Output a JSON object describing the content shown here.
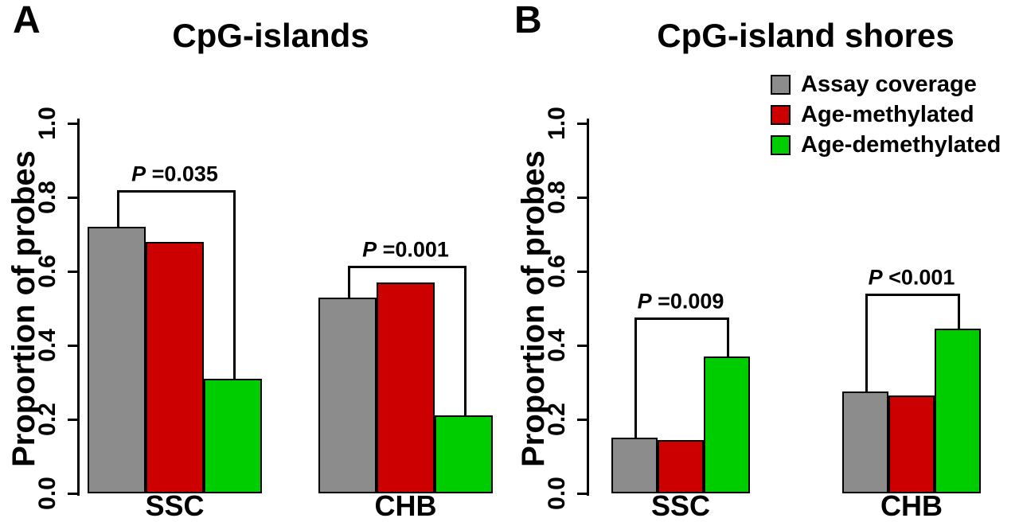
{
  "figure": {
    "background": "#ffffff"
  },
  "legend": {
    "items": [
      {
        "label": "Assay coverage",
        "color": "#8c8c8c"
      },
      {
        "label": "Age-methylated",
        "color": "#cd0000"
      },
      {
        "label": "Age-demethylated",
        "color": "#00cd00"
      }
    ]
  },
  "chart_data": [
    {
      "type": "bar",
      "panel_letter": "A",
      "title": "CpG-islands",
      "xlabel": "",
      "ylabel": "Proportion of probes",
      "ylim": [
        0,
        1.0
      ],
      "yticks": [
        0,
        0.2,
        0.4,
        0.6,
        0.8,
        1.0
      ],
      "ytick_labels": [
        "0.0",
        "0.2",
        "0.4",
        "0.6",
        "0.8",
        "1.0"
      ],
      "categories": [
        "SSC",
        "CHB"
      ],
      "grid": false,
      "legend_position": "none",
      "series": [
        {
          "name": "Assay coverage",
          "color": "#8c8c8c",
          "values": [
            0.72,
            0.53
          ]
        },
        {
          "name": "Age-methylated",
          "color": "#cd0000",
          "values": [
            0.68,
            0.57
          ]
        },
        {
          "name": "Age-demethylated",
          "color": "#00cd00",
          "values": [
            0.31,
            0.21
          ]
        }
      ],
      "annotations": [
        {
          "group": 0,
          "from_series": 0,
          "to_series": 2,
          "bracket_value": 0.82,
          "label": "P =0.035",
          "label_italic": "P",
          "label_text": " =0.035"
        },
        {
          "group": 1,
          "from_series": 0,
          "to_series": 2,
          "bracket_value": 0.615,
          "label": "P =0.001",
          "label_italic": "P",
          "label_text": " =0.001"
        }
      ]
    },
    {
      "type": "bar",
      "panel_letter": "B",
      "title": "CpG-island shores",
      "xlabel": "",
      "ylabel": "Proportion of probes",
      "ylim": [
        0,
        1.0
      ],
      "yticks": [
        0,
        0.2,
        0.4,
        0.6,
        0.8,
        1.0
      ],
      "ytick_labels": [
        "0.0",
        "0.2",
        "0.4",
        "0.6",
        "0.8",
        "1.0"
      ],
      "categories": [
        "SSC",
        "CHB"
      ],
      "grid": false,
      "legend_position": "top-right",
      "series": [
        {
          "name": "Assay coverage",
          "color": "#8c8c8c",
          "values": [
            0.15,
            0.275
          ]
        },
        {
          "name": "Age-methylated",
          "color": "#cd0000",
          "values": [
            0.145,
            0.265
          ]
        },
        {
          "name": "Age-demethylated",
          "color": "#00cd00",
          "values": [
            0.37,
            0.445
          ]
        }
      ],
      "annotations": [
        {
          "group": 0,
          "from_series": 0,
          "to_series": 2,
          "bracket_value": 0.475,
          "label": "P =0.009",
          "label_italic": "P",
          "label_text": " =0.009"
        },
        {
          "group": 1,
          "from_series": 0,
          "to_series": 2,
          "bracket_value": 0.54,
          "label": "P <0.001",
          "label_italic": "P",
          "label_text": " <0.001"
        }
      ]
    }
  ]
}
